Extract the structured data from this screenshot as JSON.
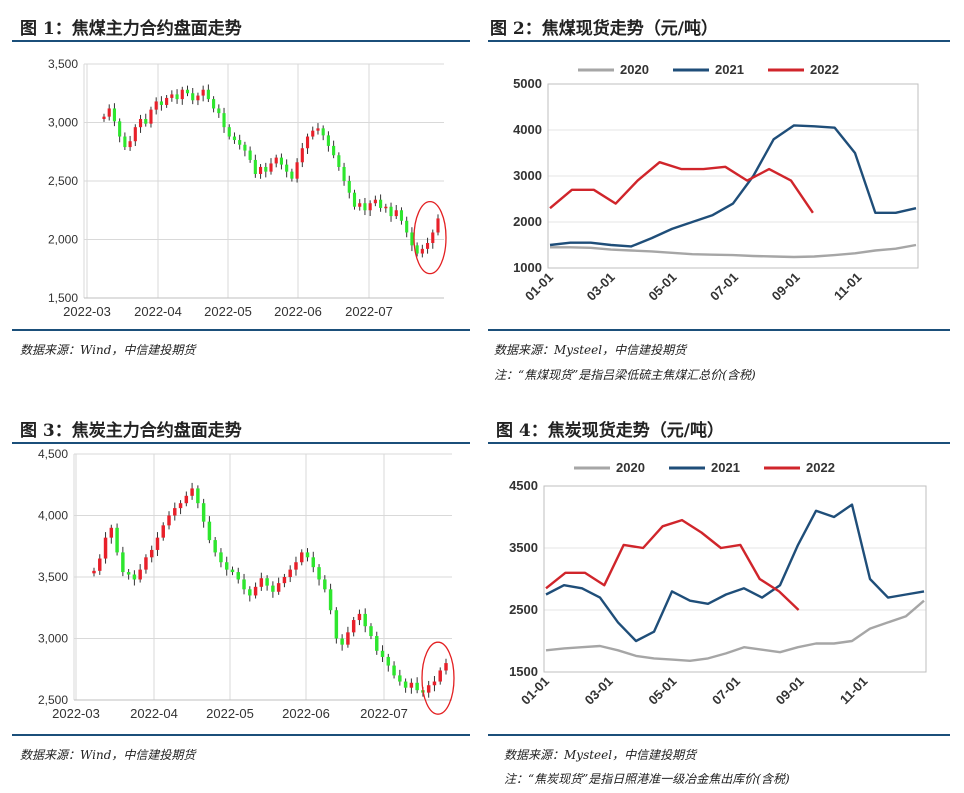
{
  "colors": {
    "rule": "#1b4f7a",
    "up": "#e8202a",
    "down": "#2ee62e",
    "c2020": "#a6a6a6",
    "c2021": "#1f4e79",
    "c2022": "#d0252b",
    "circle": "#e32022"
  },
  "panels": [
    {
      "title": "图 1：焦煤主力合约盘面走势",
      "source": "数据来源：Wind，中信建投期货",
      "note": ""
    },
    {
      "title": "图 2：焦煤现货走势（元/吨）",
      "source": "数据来源：Mysteel，中信建投期货",
      "note": "注：“焦煤现货”是指吕梁低硫主焦煤汇总价(含税)"
    },
    {
      "title": "图 3：焦炭主力合约盘面走势",
      "source": "数据来源：Wind，中信建投期货",
      "note": ""
    },
    {
      "title": "图 4：焦炭现货走势（元/吨）",
      "source": "数据来源：Mysteel，中信建投期货",
      "note": "注：“焦炭现货”是指日照港准一级冶金焦出库价(含税)"
    }
  ],
  "chart_data": [
    {
      "type": "candlestick",
      "title": "",
      "ylim": [
        1500,
        3500
      ],
      "yticks": [
        "1,500",
        "2,000",
        "2,500",
        "3,000",
        "3,500"
      ],
      "xticks": [
        "2022-03",
        "2022-04",
        "2022-05",
        "2022-06",
        "2022-07"
      ],
      "closes": [
        3050,
        3120,
        3010,
        2880,
        2790,
        2840,
        2960,
        3030,
        2990,
        3110,
        3180,
        3150,
        3210,
        3240,
        3200,
        3280,
        3250,
        3190,
        3230,
        3280,
        3200,
        3120,
        3080,
        2960,
        2880,
        2850,
        2810,
        2760,
        2680,
        2560,
        2620,
        2580,
        2650,
        2700,
        2640,
        2580,
        2520,
        2660,
        2780,
        2880,
        2930,
        2950,
        2890,
        2800,
        2720,
        2620,
        2500,
        2400,
        2280,
        2310,
        2250,
        2310,
        2340,
        2270,
        2280,
        2200,
        2250,
        2160,
        2060,
        1950,
        1880,
        1920,
        1970,
        2060,
        2180
      ],
      "annotation": "ellipse around latest rebound"
    },
    {
      "type": "line",
      "title": "",
      "xlabels": [
        "01-01",
        "03-01",
        "05-01",
        "07-01",
        "09-01",
        "11-01"
      ],
      "ylim": [
        1000,
        5000
      ],
      "yticks": [
        "1000",
        "2000",
        "3000",
        "4000",
        "5000"
      ],
      "series": [
        {
          "name": "2020",
          "values": [
            1450,
            1450,
            1440,
            1400,
            1380,
            1360,
            1330,
            1300,
            1290,
            1280,
            1260,
            1250,
            1240,
            1250,
            1280,
            1320,
            1380,
            1420,
            1500
          ]
        },
        {
          "name": "2021",
          "values": [
            1500,
            1550,
            1550,
            1500,
            1470,
            1650,
            1850,
            2000,
            2150,
            2400,
            3000,
            3800,
            4100,
            4080,
            4050,
            3500,
            2200,
            2200,
            2300
          ]
        },
        {
          "name": "2022",
          "values": [
            2300,
            2700,
            2700,
            2400,
            2900,
            3300,
            3150,
            3150,
            3200,
            2900,
            3150,
            2900,
            2200
          ]
        }
      ]
    },
    {
      "type": "candlestick",
      "title": "",
      "ylim": [
        2500,
        4500
      ],
      "yticks": [
        "2,500",
        "3,000",
        "3,500",
        "4,000",
        "4,500"
      ],
      "xticks": [
        "2022-03",
        "2022-04",
        "2022-05",
        "2022-06",
        "2022-07"
      ],
      "closes": [
        3550,
        3650,
        3820,
        3900,
        3700,
        3540,
        3520,
        3480,
        3560,
        3660,
        3720,
        3820,
        3920,
        4000,
        4060,
        4100,
        4160,
        4220,
        4100,
        3950,
        3800,
        3700,
        3620,
        3560,
        3540,
        3480,
        3400,
        3350,
        3420,
        3490,
        3430,
        3380,
        3450,
        3500,
        3560,
        3620,
        3700,
        3660,
        3580,
        3480,
        3400,
        3230,
        3000,
        2950,
        3050,
        3150,
        3200,
        3100,
        3020,
        2900,
        2850,
        2780,
        2700,
        2650,
        2600,
        2640,
        2580,
        2560,
        2620,
        2650,
        2740,
        2800
      ],
      "annotation": "ellipse around latest rebound"
    },
    {
      "type": "line",
      "title": "",
      "xlabels": [
        "01-01",
        "03-01",
        "05-01",
        "07-01",
        "09-01",
        "11-01"
      ],
      "ylim": [
        1500,
        4500
      ],
      "yticks": [
        "1500",
        "2500",
        "3500",
        "4500"
      ],
      "series": [
        {
          "name": "2020",
          "values": [
            1850,
            1880,
            1900,
            1920,
            1850,
            1760,
            1720,
            1700,
            1680,
            1720,
            1800,
            1900,
            1860,
            1820,
            1900,
            1960,
            1960,
            2000,
            2200,
            2300,
            2400,
            2650
          ]
        },
        {
          "name": "2021",
          "values": [
            2750,
            2900,
            2850,
            2700,
            2300,
            2000,
            2150,
            2800,
            2650,
            2600,
            2750,
            2850,
            2700,
            2900,
            3550,
            4100,
            4000,
            4200,
            3000,
            2700,
            2750,
            2800
          ]
        },
        {
          "name": "2022",
          "values": [
            2850,
            3100,
            3100,
            2900,
            3550,
            3500,
            3850,
            3950,
            3750,
            3500,
            3550,
            3000,
            2800,
            2500
          ]
        }
      ]
    }
  ]
}
